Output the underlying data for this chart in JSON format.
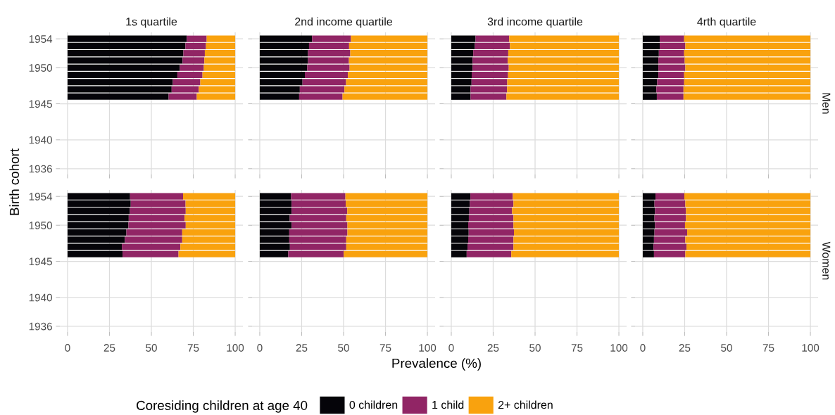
{
  "chart_data": [
    {
      "type": "bar",
      "orientation": "horizontal",
      "stacked": true,
      "title": "1s quartile",
      "ylabel": "Birth cohort",
      "legend_title": "Coresiding children at age 40",
      "legend": "bottom",
      "grid": true,
      "tick_labels": "y",
      "x": [
        1946,
        1947,
        1948,
        1949,
        1950,
        1951,
        1952,
        1953,
        1954
      ],
      "xlim": [
        -4.6,
        104.6
      ],
      "xticks": [
        0,
        25,
        50,
        75,
        100
      ],
      "ylim": [
        1935.2,
        1954.9
      ],
      "yticks": [
        1936,
        1940,
        1945,
        1950,
        1954
      ],
      "series": [
        {
          "name": "0 children",
          "color": "#050409",
          "values": [
            60.3,
            62.1,
            62.8,
            65.5,
            67.0,
            68.6,
            69.1,
            70.3,
            71.1
          ]
        },
        {
          "name": "1 child",
          "color": "#912565",
          "values": [
            16.8,
            16.2,
            16.4,
            15.0,
            14.3,
            13.0,
            12.8,
            12.3,
            11.9
          ]
        },
        {
          "name": "2+ children",
          "color": "#f9a20e",
          "values": [
            22.9,
            21.7,
            20.8,
            19.5,
            18.7,
            18.4,
            18.1,
            17.4,
            17.0
          ]
        }
      ]
    },
    {
      "type": "bar",
      "orientation": "horizontal",
      "stacked": true,
      "title": "2nd income quartile",
      "grid": true,
      "tick_labels": false,
      "x": [
        1946,
        1947,
        1948,
        1949,
        1950,
        1951,
        1952,
        1953,
        1954
      ],
      "xlim": [
        -4.6,
        104.6
      ],
      "xticks": [
        0,
        25,
        50,
        75,
        100
      ],
      "ylim": [
        1935.2,
        1954.9
      ],
      "yticks": [
        1936,
        1940,
        1945,
        1950,
        1954
      ],
      "series": [
        {
          "color": "#050409",
          "values": [
            23.5,
            23.9,
            25.5,
            26.9,
            28.3,
            28.8,
            28.8,
            29.4,
            31.2
          ]
        },
        {
          "color": "#912565",
          "values": [
            25.9,
            26.6,
            26.0,
            25.7,
            25.3,
            24.4,
            25.2,
            23.9,
            23.2
          ]
        },
        {
          "color": "#f9a20e",
          "values": [
            50.6,
            49.5,
            48.5,
            47.4,
            46.4,
            46.8,
            46.0,
            46.7,
            45.6
          ]
        }
      ]
    },
    {
      "type": "bar",
      "orientation": "horizontal",
      "stacked": true,
      "title": "3rd income quartile",
      "grid": true,
      "tick_labels": false,
      "x": [
        1946,
        1947,
        1948,
        1949,
        1950,
        1951,
        1952,
        1953,
        1954
      ],
      "xlim": [
        -4.6,
        104.6
      ],
      "xticks": [
        0,
        25,
        50,
        75,
        100
      ],
      "ylim": [
        1935.2,
        1954.9
      ],
      "yticks": [
        1936,
        1940,
        1945,
        1950,
        1954
      ],
      "series": [
        {
          "color": "#050409",
          "values": [
            11.5,
            11.5,
            12.1,
            12.2,
            12.7,
            12.7,
            13.1,
            14.1,
            14.5
          ]
        },
        {
          "color": "#912565",
          "values": [
            21.4,
            21.8,
            21.3,
            21.7,
            21.6,
            21.0,
            20.9,
            20.9,
            20.1
          ]
        },
        {
          "color": "#f9a20e",
          "values": [
            67.1,
            66.7,
            66.6,
            66.1,
            65.7,
            66.3,
            66.0,
            65.0,
            65.4
          ]
        }
      ]
    },
    {
      "type": "bar",
      "orientation": "horizontal",
      "stacked": true,
      "title": "4rth quartile",
      "annotations": [
        "Men"
      ],
      "grid": true,
      "tick_labels": false,
      "x": [
        1946,
        1947,
        1948,
        1949,
        1950,
        1951,
        1952,
        1953,
        1954
      ],
      "xlim": [
        -4.6,
        104.6
      ],
      "xticks": [
        0,
        25,
        50,
        75,
        100
      ],
      "ylim": [
        1935.2,
        1954.9
      ],
      "yticks": [
        1936,
        1940,
        1945,
        1950,
        1954
      ],
      "series": [
        {
          "color": "#050409",
          "values": [
            8.4,
            8.1,
            8.6,
            9.3,
            9.3,
            9.3,
            9.6,
            10.1,
            10.1
          ]
        },
        {
          "color": "#912565",
          "values": [
            15.9,
            16.2,
            16.1,
            15.4,
            16.1,
            15.7,
            15.1,
            15.3,
            14.6
          ]
        },
        {
          "color": "#f9a20e",
          "values": [
            75.7,
            75.7,
            75.3,
            75.3,
            74.6,
            75.0,
            75.3,
            74.6,
            75.3
          ]
        }
      ]
    },
    {
      "type": "bar",
      "orientation": "horizontal",
      "stacked": true,
      "grid": true,
      "x": [
        1946,
        1947,
        1948,
        1949,
        1950,
        1951,
        1952,
        1953,
        1954
      ],
      "xlim": [
        -4.6,
        104.6
      ],
      "xticks": [
        0,
        25,
        50,
        75,
        100
      ],
      "ylim": [
        1935.2,
        1954.9
      ],
      "yticks": [
        1936,
        1940,
        1945,
        1950,
        1954
      ],
      "series": [
        {
          "color": "#050409",
          "values": [
            32.8,
            32.4,
            34.2,
            35.1,
            36.3,
            36.5,
            37.2,
            37.7,
            37.3
          ]
        },
        {
          "color": "#912565",
          "values": [
            33.4,
            34.9,
            34.2,
            33.3,
            34.2,
            33.3,
            33.3,
            32.7,
            31.6
          ]
        },
        {
          "color": "#f9a20e",
          "values": [
            33.8,
            32.7,
            31.6,
            31.6,
            29.5,
            30.2,
            29.5,
            29.6,
            31.1
          ]
        }
      ]
    },
    {
      "type": "bar",
      "orientation": "horizontal",
      "stacked": true,
      "xlabel": "Prevalence (%)",
      "grid": true,
      "tick_labels": "x",
      "x": [
        1946,
        1947,
        1948,
        1949,
        1950,
        1951,
        1952,
        1953,
        1954
      ],
      "xlim": [
        -4.6,
        104.6
      ],
      "xticks": [
        0,
        25,
        50,
        75,
        100
      ],
      "ylim": [
        1935.2,
        1954.9
      ],
      "yticks": [
        1936,
        1940,
        1945,
        1950,
        1954
      ],
      "series": [
        {
          "color": "#050409",
          "values": [
            17.0,
            18.0,
            17.6,
            17.6,
            19.0,
            17.9,
            19.0,
            19.0,
            18.7
          ]
        },
        {
          "color": "#912565",
          "values": [
            33.1,
            33.6,
            34.0,
            34.7,
            33.3,
            33.7,
            33.2,
            32.3,
            32.4
          ]
        },
        {
          "color": "#f9a20e",
          "values": [
            49.9,
            48.4,
            48.4,
            47.7,
            47.7,
            48.4,
            47.8,
            48.7,
            48.9
          ]
        }
      ]
    },
    {
      "type": "bar",
      "orientation": "horizontal",
      "stacked": true,
      "grid": true,
      "tick_labels": "x",
      "x": [
        1946,
        1947,
        1948,
        1949,
        1950,
        1951,
        1952,
        1953,
        1954
      ],
      "xlim": [
        -4.6,
        104.6
      ],
      "xticks": [
        0,
        25,
        50,
        75,
        100
      ],
      "ylim": [
        1935.2,
        1954.9
      ],
      "yticks": [
        1936,
        1940,
        1945,
        1950,
        1954
      ],
      "series": [
        {
          "color": "#050409",
          "values": [
            9.2,
            9.7,
            10.1,
            10.4,
            10.1,
            10.5,
            10.8,
            11.1,
            11.4
          ]
        },
        {
          "color": "#912565",
          "values": [
            26.6,
            27.4,
            27.0,
            27.0,
            27.0,
            26.6,
            25.5,
            26.0,
            25.3
          ]
        },
        {
          "color": "#f9a20e",
          "values": [
            64.2,
            62.9,
            62.9,
            62.6,
            62.9,
            62.9,
            63.7,
            62.9,
            63.3
          ]
        }
      ]
    },
    {
      "type": "bar",
      "orientation": "horizontal",
      "stacked": true,
      "annotations": [
        "Women"
      ],
      "grid": true,
      "tick_labels": "x",
      "x": [
        1946,
        1947,
        1948,
        1949,
        1950,
        1951,
        1952,
        1953,
        1954
      ],
      "xlim": [
        -4.6,
        104.6
      ],
      "xticks": [
        0,
        25,
        50,
        75,
        100
      ],
      "ylim": [
        1935.2,
        1954.9
      ],
      "yticks": [
        1936,
        1940,
        1945,
        1950,
        1954
      ],
      "series": [
        {
          "color": "#050409",
          "values": [
            6.7,
            6.4,
            6.7,
            7.0,
            7.3,
            7.0,
            7.3,
            7.0,
            7.6
          ]
        },
        {
          "color": "#912565",
          "values": [
            18.7,
            19.7,
            18.7,
            19.5,
            17.9,
            18.8,
            18.5,
            18.4,
            17.2
          ]
        },
        {
          "color": "#f9a20e",
          "values": [
            74.6,
            73.9,
            74.6,
            73.5,
            74.8,
            74.2,
            74.2,
            74.6,
            75.2
          ]
        }
      ]
    }
  ]
}
